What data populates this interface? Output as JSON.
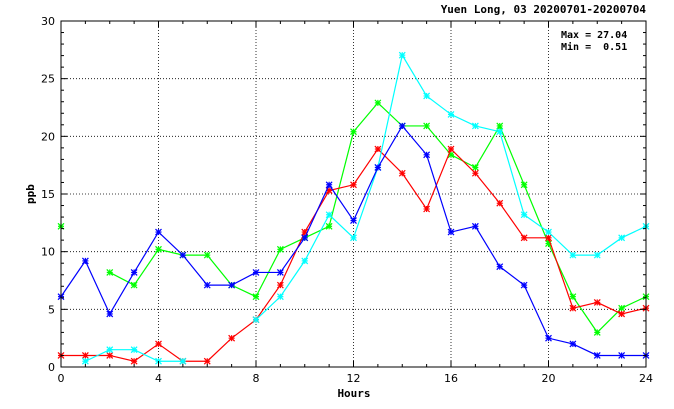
{
  "chart_data": {
    "type": "line",
    "title": "Yuen Long, 03 20200701-20200704",
    "xlabel": "Hours",
    "ylabel": "ppb",
    "xlim": [
      0,
      24
    ],
    "ylim": [
      0,
      30
    ],
    "xticks": [
      0,
      4,
      8,
      12,
      16,
      20,
      24
    ],
    "yticks": [
      0,
      5,
      10,
      15,
      20,
      25,
      30
    ],
    "grid": true,
    "stats": {
      "max": "Max = 27.04",
      "min": "Min =  0.51"
    },
    "x": [
      0,
      1,
      2,
      3,
      4,
      5,
      6,
      7,
      8,
      9,
      10,
      11,
      12,
      13,
      14,
      15,
      16,
      17,
      18,
      19,
      20,
      21,
      22,
      23,
      24
    ],
    "series": [
      {
        "color": "#00ff00",
        "values": [
          12.2,
          null,
          8.2,
          7.1,
          10.2,
          9.7,
          9.7,
          7.1,
          6.1,
          10.2,
          11.2,
          12.2,
          20.4,
          22.9,
          20.9,
          20.9,
          18.4,
          17.3,
          20.9,
          15.8,
          10.7,
          6.1,
          3.0,
          5.1,
          6.1
        ]
      },
      {
        "color": "#ff0000",
        "values": [
          1.0,
          1.0,
          1.0,
          0.5,
          2.0,
          0.5,
          0.5,
          2.5,
          4.1,
          7.1,
          11.7,
          15.3,
          15.8,
          18.9,
          16.8,
          13.7,
          18.9,
          16.8,
          14.2,
          11.2,
          11.2,
          5.1,
          5.6,
          4.6,
          5.1
        ]
      },
      {
        "color": "#00ffff",
        "values": [
          null,
          0.5,
          1.5,
          1.5,
          0.5,
          0.5,
          null,
          null,
          4.1,
          6.1,
          9.2,
          13.2,
          11.2,
          17.3,
          27.04,
          23.5,
          21.9,
          20.9,
          20.4,
          13.2,
          11.7,
          9.7,
          9.7,
          11.2,
          12.2
        ]
      },
      {
        "color": "#0000ff",
        "values": [
          6.1,
          9.2,
          4.6,
          8.2,
          11.7,
          9.7,
          7.1,
          7.1,
          8.2,
          8.2,
          11.2,
          15.8,
          12.7,
          17.3,
          20.9,
          18.4,
          11.7,
          12.2,
          8.7,
          7.1,
          2.5,
          2.0,
          1.0,
          1.0,
          1.0
        ]
      }
    ]
  }
}
